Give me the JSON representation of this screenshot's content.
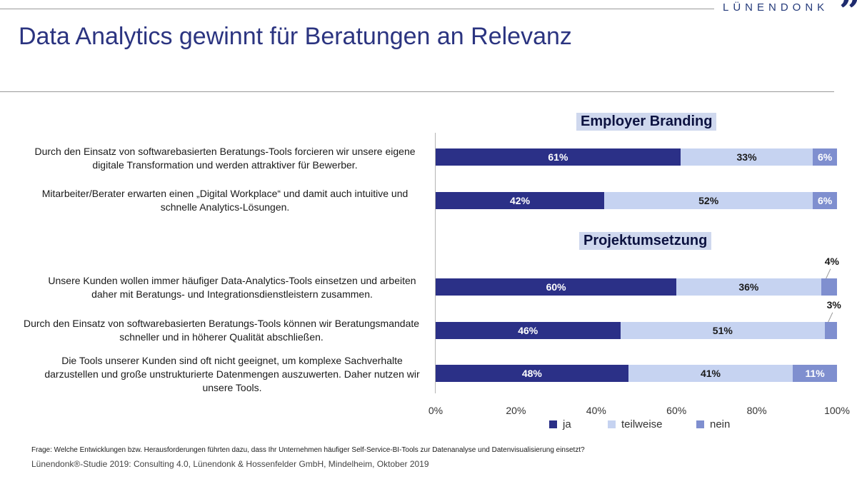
{
  "brand": {
    "name": "LÜNENDONK",
    "mark": "”"
  },
  "title": "Data Analytics gewinnt für Beratungen an Relevanz",
  "sections": [
    {
      "label": "Employer Branding"
    },
    {
      "label": "Projektumsetzung"
    }
  ],
  "footer": {
    "question": "Frage: Welche Entwicklungen bzw. Herausforderungen führten dazu, dass Ihr Unternehmen häufiger Self-Service-BI-Tools zur Datenanalyse und Datenvisualisierung einsetzt?",
    "source": "Lünendonk®-Studie 2019: Consulting 4.0, Lünendonk & Hossenfelder GmbH, Mindelheim, Oktober 2019"
  },
  "colors": {
    "ja": "#2b3087",
    "teilweise": "#c6d3f1",
    "nein": "#7f8fcf",
    "title": "#2b3480"
  },
  "chart_data": {
    "type": "bar",
    "orientation": "horizontal",
    "stacked": true,
    "xlim": [
      0,
      100
    ],
    "x_ticks": [
      "0%",
      "20%",
      "40%",
      "60%",
      "80%",
      "100%"
    ],
    "legend": [
      "ja",
      "teilweise",
      "nein"
    ],
    "legend_position": "bottom",
    "grid": false,
    "categories": [
      "Durch den Einsatz von softwarebasierten Beratungs-Tools forcieren wir unsere eigene digitale Transformation und werden attraktiver für Bewerber.",
      "Mitarbeiter/Berater erwarten einen „Digital Workplace“ und damit auch intuitive und schnelle Analytics-Lösungen.",
      "Unsere Kunden wollen immer häufiger Data-Analytics-Tools einsetzen und arbeiten daher mit Beratungs- und Integrationsdienstleistern zusammen.",
      "Durch den Einsatz von softwarebasierten Beratungs-Tools können wir Beratungsmandate schneller und in höherer Qualität abschließen.",
      "Die Tools unserer Kunden sind oft nicht geeignet, um komplexe Sachverhalte darzustellen und große unstrukturierte Datenmengen auszuwerten. Daher nutzen wir unsere Tools."
    ],
    "series": [
      {
        "name": "ja",
        "values": [
          61,
          42,
          60,
          46,
          48
        ],
        "labels": [
          "61%",
          "42%",
          "60%",
          "46%",
          "48%"
        ]
      },
      {
        "name": "teilweise",
        "values": [
          33,
          52,
          36,
          51,
          41
        ],
        "labels": [
          "33%",
          "52%",
          "36%",
          "51%",
          "41%"
        ]
      },
      {
        "name": "nein",
        "values": [
          6,
          6,
          4,
          3,
          11
        ],
        "labels": [
          "6%",
          "6%",
          "4%",
          "3%",
          "11%"
        ]
      }
    ]
  }
}
